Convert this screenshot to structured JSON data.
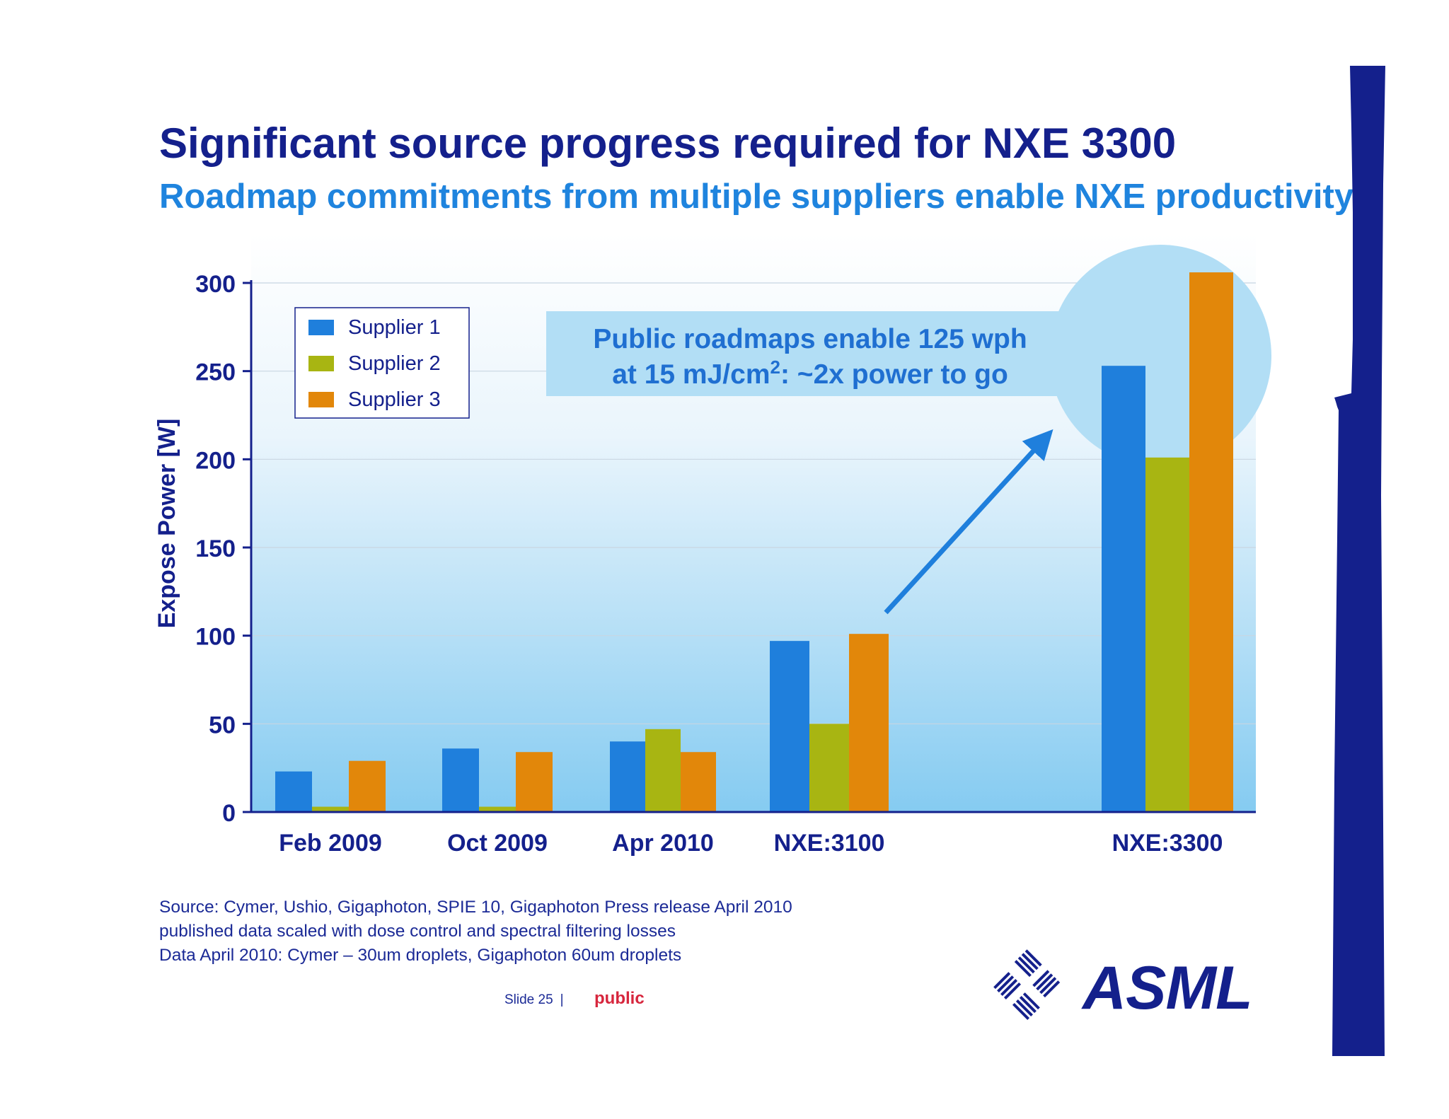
{
  "title": "Significant source progress required for NXE 3300",
  "subtitle": "Roadmap commitments from multiple suppliers enable NXE productivity",
  "chart_data": {
    "type": "bar",
    "ylabel": "Expose Power [W]",
    "xlabel": "",
    "ylim": [
      0,
      300
    ],
    "yticks": [
      0,
      50,
      100,
      150,
      200,
      250,
      300
    ],
    "grid": true,
    "legend_position": "top-left",
    "categories": [
      "Feb 2009",
      "Oct 2009",
      "Apr 2010",
      "NXE:3100",
      "NXE:3300"
    ],
    "series": [
      {
        "name": "Supplier 1",
        "color": "#1f7fdc",
        "values": [
          23,
          36,
          40,
          97,
          253
        ]
      },
      {
        "name": "Supplier 2",
        "color": "#a8b512",
        "values": [
          3,
          3,
          47,
          50,
          201
        ]
      },
      {
        "name": "Supplier 3",
        "color": "#e2870a",
        "values": [
          29,
          34,
          34,
          101,
          306
        ]
      }
    ],
    "callout": {
      "line1": "Public roadmaps enable 125 wph",
      "line2_prefix": "at 15 mJ/cm",
      "line2_sup": "2",
      "line2_suffix": ": ~2x power to go"
    }
  },
  "source_lines": [
    "Source: Cymer, Ushio, Gigaphoton, SPIE 10, Gigaphoton Press release April 2010",
    "published data scaled with dose control and spectral filtering losses",
    "Data April 2010: Cymer – 30um droplets, Gigaphoton 60um droplets"
  ],
  "footer": {
    "slide_label": "Slide 25",
    "separator": "|",
    "classification": "public"
  },
  "logo": {
    "text": "ASML",
    "icon": "asml-logo-icon"
  },
  "colors": {
    "title": "#14208c",
    "subtitle": "#1f84de",
    "axis": "#14208c",
    "side_bar": "#14208c",
    "classification": "#d7263d",
    "callout_bg": "#b2def5",
    "arrow": "#1f7fdc"
  }
}
